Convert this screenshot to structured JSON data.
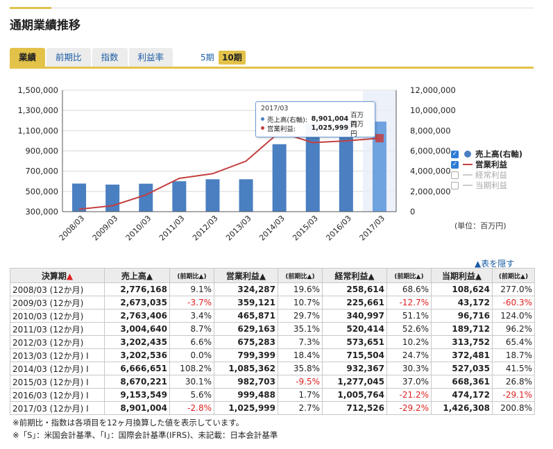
{
  "page": {
    "title": "通期業績推移"
  },
  "tabs": [
    {
      "label": "業績",
      "active": true
    },
    {
      "label": "前期比",
      "active": false
    },
    {
      "label": "指数",
      "active": false
    },
    {
      "label": "利益率",
      "active": false
    }
  ],
  "periods": {
    "five": "5期",
    "ten": "10期",
    "selected": "10期"
  },
  "chart_data": {
    "type": "bar",
    "categories": [
      "2008/03",
      "2009/03",
      "2010/03",
      "2011/03",
      "2012/03",
      "2013/03",
      "2014/03",
      "2015/03",
      "2016/03",
      "2017/03"
    ],
    "series": [
      {
        "name": "売上高(右軸)",
        "type": "bar",
        "axis": "right",
        "color": "#4a7fc1",
        "values": [
          2776168,
          2673035,
          2763406,
          3004640,
          3202435,
          3202536,
          6666651,
          8670221,
          9153549,
          8901004
        ]
      },
      {
        "name": "営業利益",
        "type": "line",
        "axis": "left",
        "color": "#c44040",
        "values": [
          324287,
          359121,
          465871,
          629163,
          675283,
          799399,
          1085362,
          982703,
          999488,
          1025999
        ]
      }
    ],
    "left_axis": {
      "ylim": [
        300000,
        1500000
      ],
      "ticks": [
        "300,000",
        "500,000",
        "700,000",
        "900,000",
        "1,100,000",
        "1,300,000",
        "1,500,000"
      ]
    },
    "right_axis": {
      "ylim": [
        0,
        12000000
      ],
      "ticks": [
        "0",
        "2,000,000",
        "4,000,000",
        "6,000,000",
        "8,000,000",
        "10,000,000",
        "12,000,000"
      ]
    },
    "grid": true,
    "highlighted_category": "2017/03",
    "unit_label": "(単位：百万円)"
  },
  "legend": [
    {
      "label": "売上高(右軸)",
      "checked": true,
      "color": "#4a7fc1",
      "symbol": "dot"
    },
    {
      "label": "営業利益",
      "checked": true,
      "color": "#c44040",
      "symbol": "line"
    },
    {
      "label": "経常利益",
      "checked": false,
      "color": "#cccccc",
      "symbol": "line"
    },
    {
      "label": "当期利益",
      "checked": false,
      "color": "#cccccc",
      "symbol": "line"
    }
  ],
  "tooltip": {
    "date": "2017/03",
    "rows": [
      {
        "name": "売上高(右軸):",
        "value": "8,901,004",
        "unit": "百万円",
        "color": "#4a7fc1"
      },
      {
        "name": "営業利益:",
        "value": "1,025,999",
        "unit": "百万円",
        "color": "#c44040"
      }
    ]
  },
  "hide_link": "▲表を隠す",
  "table": {
    "headers": {
      "period": "決算期",
      "period_marker": "▲",
      "sales": "売上高▲",
      "change": "(前期比▲)",
      "op": "営業利益▲",
      "ord": "経常利益▲",
      "net": "当期利益▲"
    },
    "rows": [
      {
        "period": "2008/03 (12か月)",
        "sales": "2,776,168",
        "sales_c": "9.1%",
        "op": "324,287",
        "op_c": "19.6%",
        "ord": "258,614",
        "ord_c": "68.6%",
        "net": "108,624",
        "net_c": "277.0%"
      },
      {
        "period": "2009/03 (12か月)",
        "sales": "2,673,035",
        "sales_c": "-3.7%",
        "op": "359,121",
        "op_c": "10.7%",
        "ord": "225,661",
        "ord_c": "-12.7%",
        "net": "43,172",
        "net_c": "-60.3%"
      },
      {
        "period": "2010/03 (12か月)",
        "sales": "2,763,406",
        "sales_c": "3.4%",
        "op": "465,871",
        "op_c": "29.7%",
        "ord": "340,997",
        "ord_c": "51.1%",
        "net": "96,716",
        "net_c": "124.0%"
      },
      {
        "period": "2011/03 (12か月)",
        "sales": "3,004,640",
        "sales_c": "8.7%",
        "op": "629,163",
        "op_c": "35.1%",
        "ord": "520,414",
        "ord_c": "52.6%",
        "net": "189,712",
        "net_c": "96.2%"
      },
      {
        "period": "2012/03 (12か月)",
        "sales": "3,202,435",
        "sales_c": "6.6%",
        "op": "675,283",
        "op_c": "7.3%",
        "ord": "573,651",
        "ord_c": "10.2%",
        "net": "313,752",
        "net_c": "65.4%"
      },
      {
        "period": "2013/03 (12か月) I",
        "sales": "3,202,536",
        "sales_c": "0.0%",
        "op": "799,399",
        "op_c": "18.4%",
        "ord": "715,504",
        "ord_c": "24.7%",
        "net": "372,481",
        "net_c": "18.7%"
      },
      {
        "period": "2014/03 (12か月) I",
        "sales": "6,666,651",
        "sales_c": "108.2%",
        "op": "1,085,362",
        "op_c": "35.8%",
        "ord": "932,367",
        "ord_c": "30.3%",
        "net": "527,035",
        "net_c": "41.5%"
      },
      {
        "period": "2015/03 (12か月) I",
        "sales": "8,670,221",
        "sales_c": "30.1%",
        "op": "982,703",
        "op_c": "-9.5%",
        "ord": "1,277,045",
        "ord_c": "37.0%",
        "net": "668,361",
        "net_c": "26.8%"
      },
      {
        "period": "2016/03 (12か月) I",
        "sales": "9,153,549",
        "sales_c": "5.6%",
        "op": "999,488",
        "op_c": "1.7%",
        "ord": "1,005,764",
        "ord_c": "-21.2%",
        "net": "474,172",
        "net_c": "-29.1%"
      },
      {
        "period": "2017/03 (12か月) I",
        "sales": "8,901,004",
        "sales_c": "-2.8%",
        "op": "1,025,999",
        "op_c": "2.7%",
        "ord": "712,526",
        "ord_c": "-29.2%",
        "net": "1,426,308",
        "net_c": "200.8%"
      }
    ]
  },
  "notes": [
    "※前期比・指数は各項目を12ヶ月換算した値を表示しています。",
    "※「S」：米国会計基準、「I」：国際会計基準(IFRS)、未記載：日本会計基準"
  ]
}
